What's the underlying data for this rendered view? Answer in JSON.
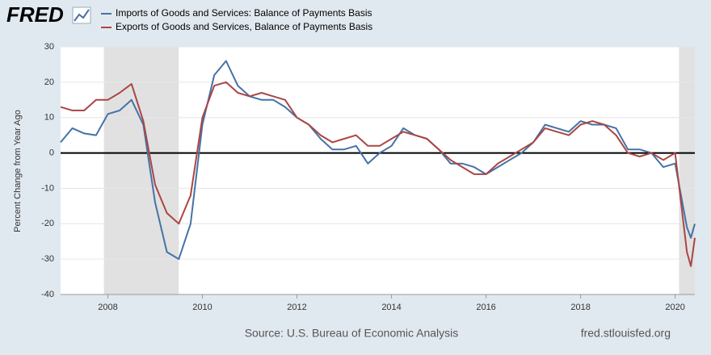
{
  "chart_data": {
    "type": "line",
    "logo": "FRED",
    "y_label": "Percent Change from Year Ago",
    "source": "Source: U.S. Bureau of Economic Analysis",
    "site": "fred.stlouisfed.org",
    "x": [
      2007.0,
      2007.25,
      2007.5,
      2007.75,
      2008.0,
      2008.25,
      2008.5,
      2008.75,
      2009.0,
      2009.25,
      2009.5,
      2009.75,
      2010.0,
      2010.25,
      2010.5,
      2010.75,
      2011.0,
      2011.25,
      2011.5,
      2011.75,
      2012.0,
      2012.25,
      2012.5,
      2012.75,
      2013.0,
      2013.25,
      2013.5,
      2013.75,
      2014.0,
      2014.25,
      2014.5,
      2014.75,
      2015.0,
      2015.25,
      2015.5,
      2015.75,
      2016.0,
      2016.25,
      2016.5,
      2016.75,
      2017.0,
      2017.25,
      2017.5,
      2017.75,
      2018.0,
      2018.25,
      2018.5,
      2018.75,
      2019.0,
      2019.25,
      2019.5,
      2019.75,
      2020.0,
      2020.25,
      2020.333,
      2020.417
    ],
    "series": [
      {
        "name": "Imports of Goods and Services: Balance of Payments Basis",
        "color": "#4572a7",
        "values": [
          3,
          7,
          5.5,
          5,
          11,
          12,
          15,
          8,
          -14,
          -28,
          -30,
          -20,
          8,
          22,
          26,
          19,
          16,
          15,
          15,
          13,
          10,
          8,
          4,
          1,
          1,
          2,
          -3,
          0,
          2,
          7,
          5,
          4,
          1,
          -3,
          -3,
          -4,
          -6,
          -4,
          -2,
          0,
          3,
          8,
          7,
          6,
          9,
          8,
          8,
          7,
          1,
          1,
          0,
          -4,
          -3,
          -21,
          -24,
          -20
        ]
      },
      {
        "name": "Exports of Goods and Services, Balance of Payments Basis",
        "color": "#aa4643",
        "values": [
          13,
          12,
          12,
          15,
          15,
          17,
          19.5,
          9,
          -9,
          -17,
          -20,
          -12,
          10,
          19,
          20,
          17,
          16,
          17,
          16,
          15,
          10,
          8,
          5,
          3,
          4,
          5,
          2,
          2,
          4,
          6,
          5,
          4,
          1,
          -2,
          -4,
          -6,
          -6,
          -3,
          -1,
          1,
          3,
          7,
          6,
          5,
          8,
          9,
          8,
          5,
          0,
          -1,
          0,
          -2,
          0,
          -28,
          -32,
          -24
        ]
      }
    ],
    "recessions": [
      [
        2007.917,
        2009.5
      ],
      [
        2020.083,
        2020.417
      ]
    ],
    "xlim": [
      2007.0,
      2020.417
    ],
    "xticks": [
      2008,
      2010,
      2012,
      2014,
      2016,
      2018,
      2020
    ],
    "ylim": [
      -40,
      30
    ],
    "yticks": [
      -40,
      -30,
      -20,
      -10,
      0,
      10,
      20,
      30
    ],
    "grid": true
  }
}
